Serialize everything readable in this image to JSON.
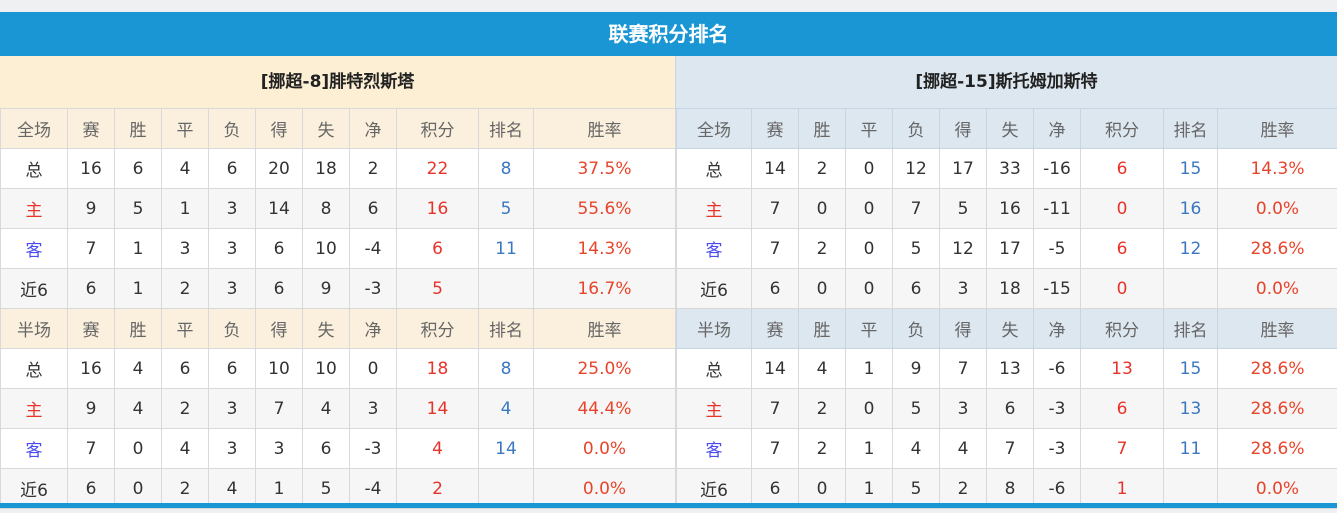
{
  "title": "联赛积分排名",
  "columns": [
    "赛",
    "胜",
    "平",
    "负",
    "得",
    "失",
    "净",
    "积分",
    "排名",
    "胜率"
  ],
  "teams": [
    {
      "name": "[挪超-8]腓特烈斯塔",
      "sections": [
        {
          "label": "全场",
          "rows": [
            [
              "总",
              "16",
              "6",
              "4",
              "6",
              "20",
              "18",
              "2",
              "22",
              "8",
              "37.5%"
            ],
            [
              "主",
              "9",
              "5",
              "1",
              "3",
              "14",
              "8",
              "6",
              "16",
              "5",
              "55.6%"
            ],
            [
              "客",
              "7",
              "1",
              "3",
              "3",
              "6",
              "10",
              "-4",
              "6",
              "11",
              "14.3%"
            ],
            [
              "近6",
              "6",
              "1",
              "2",
              "3",
              "6",
              "9",
              "-3",
              "5",
              "",
              "16.7%"
            ]
          ]
        },
        {
          "label": "半场",
          "rows": [
            [
              "总",
              "16",
              "4",
              "6",
              "6",
              "10",
              "10",
              "0",
              "18",
              "8",
              "25.0%"
            ],
            [
              "主",
              "9",
              "4",
              "2",
              "3",
              "7",
              "4",
              "3",
              "14",
              "4",
              "44.4%"
            ],
            [
              "客",
              "7",
              "0",
              "4",
              "3",
              "3",
              "6",
              "-3",
              "4",
              "14",
              "0.0%"
            ],
            [
              "近6",
              "6",
              "0",
              "2",
              "4",
              "1",
              "5",
              "-4",
              "2",
              "",
              "0.0%"
            ]
          ]
        }
      ]
    },
    {
      "name": "[挪超-15]斯托姆加斯特",
      "sections": [
        {
          "label": "全场",
          "rows": [
            [
              "总",
              "14",
              "2",
              "0",
              "12",
              "17",
              "33",
              "-16",
              "6",
              "15",
              "14.3%"
            ],
            [
              "主",
              "7",
              "0",
              "0",
              "7",
              "5",
              "16",
              "-11",
              "0",
              "16",
              "0.0%"
            ],
            [
              "客",
              "7",
              "2",
              "0",
              "5",
              "12",
              "17",
              "-5",
              "6",
              "12",
              "28.6%"
            ],
            [
              "近6",
              "6",
              "0",
              "0",
              "6",
              "3",
              "18",
              "-15",
              "0",
              "",
              "0.0%"
            ]
          ]
        },
        {
          "label": "半场",
          "rows": [
            [
              "总",
              "14",
              "4",
              "1",
              "9",
              "7",
              "13",
              "-6",
              "13",
              "15",
              "28.6%"
            ],
            [
              "主",
              "7",
              "2",
              "0",
              "5",
              "3",
              "6",
              "-3",
              "6",
              "13",
              "28.6%"
            ],
            [
              "客",
              "7",
              "2",
              "1",
              "4",
              "4",
              "7",
              "-3",
              "7",
              "11",
              "28.6%"
            ],
            [
              "近6",
              "6",
              "0",
              "1",
              "5",
              "2",
              "8",
              "-6",
              "1",
              "",
              "0.0%"
            ]
          ]
        }
      ]
    }
  ],
  "colors": {
    "accent": "#1b96d4",
    "points": "#e8332b",
    "rank": "#3a78c0"
  }
}
